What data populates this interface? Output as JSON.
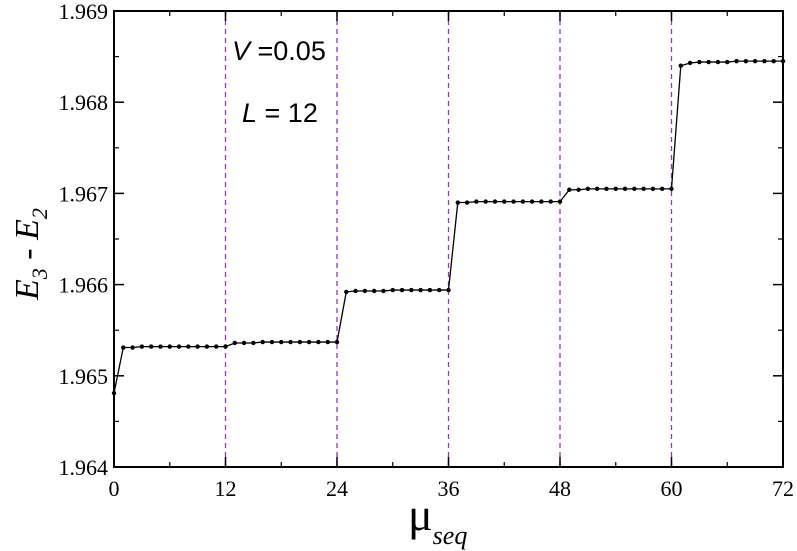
{
  "chart_data": {
    "type": "line",
    "title": "",
    "xlabel": {
      "main": "μ",
      "sub": "seq"
    },
    "ylabel": {
      "e1": "E",
      "s1": "3",
      "mid": " - ",
      "e2": "E",
      "s2": "2"
    },
    "xlim": [
      0,
      72
    ],
    "ylim": [
      1.964,
      1.969
    ],
    "xticks": [
      0,
      12,
      24,
      36,
      48,
      60,
      72
    ],
    "xtick_labels": [
      "0",
      "12",
      "24",
      "36",
      "48",
      "60",
      "72"
    ],
    "yticks": [
      1.964,
      1.965,
      1.966,
      1.967,
      1.968,
      1.969
    ],
    "ytick_labels": [
      "1.964",
      "1.965",
      "1.966",
      "1.967",
      "1.968",
      "1.969"
    ],
    "vertical_lines": [
      0,
      12,
      24,
      36,
      48,
      60
    ],
    "annotations": [
      {
        "id": "v",
        "italic": "V",
        "rest": " =0.05"
      },
      {
        "id": "l",
        "italic": "L",
        "rest": " = 12"
      }
    ],
    "series": [
      {
        "line_color": "#000000",
        "vline_color": "#9933cc",
        "x": [
          0,
          1,
          2,
          3,
          4,
          5,
          6,
          7,
          8,
          9,
          10,
          11,
          12,
          13,
          14,
          15,
          16,
          17,
          18,
          19,
          20,
          21,
          22,
          23,
          24,
          25,
          26,
          27,
          28,
          29,
          30,
          31,
          32,
          33,
          34,
          35,
          36,
          37,
          38,
          39,
          40,
          41,
          42,
          43,
          44,
          45,
          46,
          47,
          48,
          49,
          50,
          51,
          52,
          53,
          54,
          55,
          56,
          57,
          58,
          59,
          60,
          61,
          62,
          63,
          64,
          65,
          66,
          67,
          68,
          69,
          70,
          71,
          72
        ],
        "y": [
          1.96481,
          1.96531,
          1.96531,
          1.96532,
          1.96532,
          1.96532,
          1.96532,
          1.96532,
          1.96532,
          1.96532,
          1.96532,
          1.96532,
          1.96532,
          1.96536,
          1.96536,
          1.96536,
          1.96537,
          1.96537,
          1.96537,
          1.96537,
          1.96537,
          1.96537,
          1.96537,
          1.96537,
          1.96537,
          1.96592,
          1.96593,
          1.96593,
          1.96593,
          1.96593,
          1.96594,
          1.96594,
          1.96594,
          1.96594,
          1.96594,
          1.96594,
          1.96594,
          1.9669,
          1.9669,
          1.96691,
          1.96691,
          1.96691,
          1.96691,
          1.96691,
          1.96691,
          1.96691,
          1.96691,
          1.96691,
          1.96691,
          1.96704,
          1.96704,
          1.96705,
          1.96705,
          1.96705,
          1.96705,
          1.96705,
          1.96705,
          1.96705,
          1.96705,
          1.96705,
          1.96705,
          1.9684,
          1.96843,
          1.96844,
          1.96844,
          1.96844,
          1.96844,
          1.96845,
          1.96845,
          1.96845,
          1.96845,
          1.96845,
          1.96845
        ]
      }
    ]
  }
}
